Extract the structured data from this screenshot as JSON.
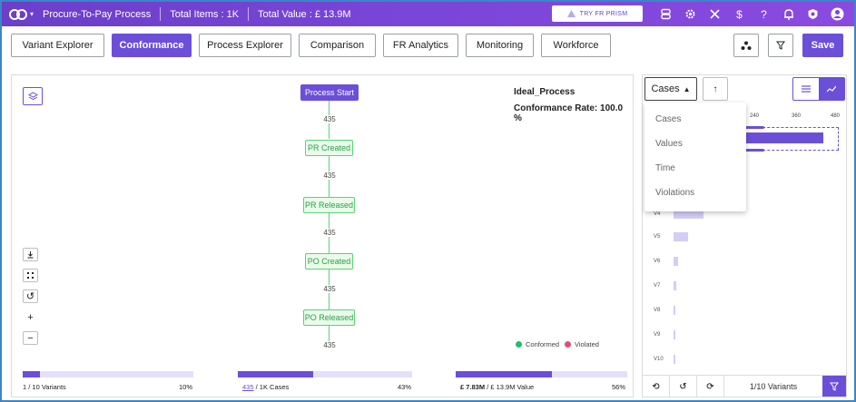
{
  "header": {
    "title": "Procure-To-Pay Process",
    "total_items": "Total Items : 1K",
    "total_value": "Total Value : £ 13.9M",
    "prism_label": "TRY FR PRISM"
  },
  "tabs": [
    {
      "label": "Variant Explorer",
      "active": false
    },
    {
      "label": "Conformance",
      "active": true
    },
    {
      "label": "Process Explorer",
      "active": false
    },
    {
      "label": "Comparison",
      "active": false
    },
    {
      "label": "FR Analytics",
      "active": false
    },
    {
      "label": "Monitoring",
      "active": false
    },
    {
      "label": "Workforce",
      "active": false
    }
  ],
  "toolbar": {
    "save_label": "Save"
  },
  "process": {
    "model_name": "Ideal_Process",
    "conformance_rate": "Conformance Rate: 100.0 %",
    "nodes": [
      "Process Start",
      "PR Created",
      "PR Released",
      "PO Created",
      "PO Released"
    ],
    "edge_counts": [
      "435",
      "435",
      "435",
      "435",
      "435"
    ],
    "legend": {
      "conformed": "Conformed",
      "violated": "Violated"
    }
  },
  "stats": {
    "variants": {
      "left": "1 / 10 Variants",
      "pct": "10%",
      "fraction": 0.1
    },
    "cases": {
      "link": "435",
      "rest": " / 1K Cases",
      "pct": "43%",
      "fraction": 0.43
    },
    "value": {
      "left": "£ 7.83M",
      "rest": " / £ 13.9M Value",
      "pct": "56%",
      "fraction": 0.56
    }
  },
  "right_panel": {
    "dropdown_label": "Cases",
    "menu": [
      "Cases",
      "Values",
      "Time",
      "Violations"
    ],
    "axis_ticks": [
      "240",
      "360",
      "480"
    ],
    "variant_labels": [
      "V4",
      "V5",
      "V6",
      "V7",
      "V8",
      "V9",
      "V10"
    ],
    "footer_text": "1/10 Variants"
  },
  "colors": {
    "accent": "#6b4fd9",
    "conformed": "#1fbf6a",
    "violated": "#e64a72"
  }
}
